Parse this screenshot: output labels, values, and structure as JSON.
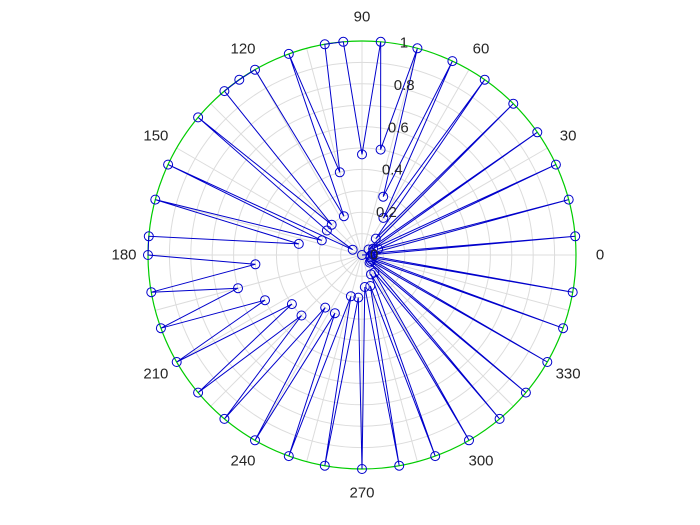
{
  "chart_data": {
    "type": "polar-line",
    "rlim": [
      0,
      1
    ],
    "r_tick_labels": [
      "0",
      "0.2",
      "0.4",
      "0.6",
      "0.8",
      "1"
    ],
    "theta_tick_labels": [
      "0",
      "30",
      "60",
      "90",
      "120",
      "150",
      "180",
      "210",
      "240",
      "270",
      "300",
      "330"
    ],
    "grid": true,
    "colors": {
      "line": "#0000cc",
      "marker": "#0000cc",
      "outer_circle": "#00cc00",
      "grid": "#dcdcdc",
      "text": "#262626"
    },
    "series": [
      {
        "theta": [
          0,
          2,
          5,
          10,
          15,
          20,
          25,
          30,
          35,
          40,
          45,
          50,
          55,
          60,
          65,
          70,
          75,
          80,
          85,
          90,
          95,
          100,
          105,
          110,
          115,
          120,
          125,
          130,
          135,
          140,
          145,
          150,
          155,
          160,
          165,
          170,
          175,
          180,
          185,
          190,
          195,
          200,
          205,
          210,
          215,
          220,
          225,
          230,
          235,
          240,
          245,
          250,
          255,
          260,
          265,
          270,
          275,
          280,
          285,
          290,
          295,
          300,
          305,
          310,
          315,
          320,
          325,
          330,
          335,
          340,
          345,
          350,
          355
        ],
        "r": [
          0.0,
          0.05,
          1.0,
          0.05,
          1.0,
          0.08,
          1.0,
          0.06,
          1.0,
          0.04,
          1.0,
          0.1,
          1.0,
          0.2,
          1.0,
          0.29,
          1.0,
          0.5,
          1.0,
          0.47,
          1.0,
          1.0,
          0.4,
          1.0,
          0.2,
          1.0,
          1.0,
          1.0,
          0.2,
          1.0,
          0.2,
          0.05,
          1.0,
          0.2,
          1.0,
          0.3,
          1.0,
          1.0,
          0.5,
          1.0,
          0.6,
          1.0,
          0.5,
          1.0,
          0.4,
          1.0,
          0.4,
          1.0,
          0.3,
          1.0,
          0.3,
          1.0,
          0.2,
          1.0,
          0.2,
          1.0,
          0.15,
          1.0,
          0.15,
          1.0,
          0.1,
          1.0,
          0.1,
          1.0,
          0.05,
          1.0,
          0.05,
          1.0,
          0.05,
          1.0,
          0.04,
          1.0,
          0.04
        ]
      }
    ]
  },
  "measured_points": [
    {
      "theta": 0,
      "r": 0.0
    },
    {
      "theta": 29,
      "r": 0.07
    },
    {
      "theta": 14,
      "r": 1.0
    },
    {
      "theta": 37,
      "r": 0.98
    },
    {
      "theta": 88.5,
      "r": 1.0
    },
    {
      "theta": 15,
      "r": 0.08
    },
    {
      "theta": 210,
      "r": 0.0
    },
    {
      "theta": 200,
      "r": 0.07
    },
    {
      "theta": 260,
      "r": 0.02
    },
    {
      "theta": 319,
      "r": 0.08
    },
    {
      "theta": 347,
      "r": 1.0
    },
    {
      "theta": 304,
      "r": 0.26
    },
    {
      "theta": 315,
      "r": 1.0
    },
    {
      "theta": 289,
      "r": 0.29
    },
    {
      "theta": 290,
      "r": 1.0
    },
    {
      "theta": 255,
      "r": 0.41
    },
    {
      "theta": 288,
      "r": 1.0
    },
    {
      "theta": 247,
      "r": 0.48
    },
    {
      "theta": 258,
      "r": 1.0
    },
    {
      "theta": 230,
      "r": 0.42
    },
    {
      "theta": 232,
      "r": 1.0
    },
    {
      "theta": 212,
      "r": 0.38
    },
    {
      "theta": 204,
      "r": 0.95
    },
    {
      "theta": 189,
      "r": 1.0
    },
    {
      "theta": 173,
      "r": 1.0
    },
    {
      "theta": 150,
      "r": 1.0
    },
    {
      "theta": 166,
      "r": 0.08
    }
  ]
}
